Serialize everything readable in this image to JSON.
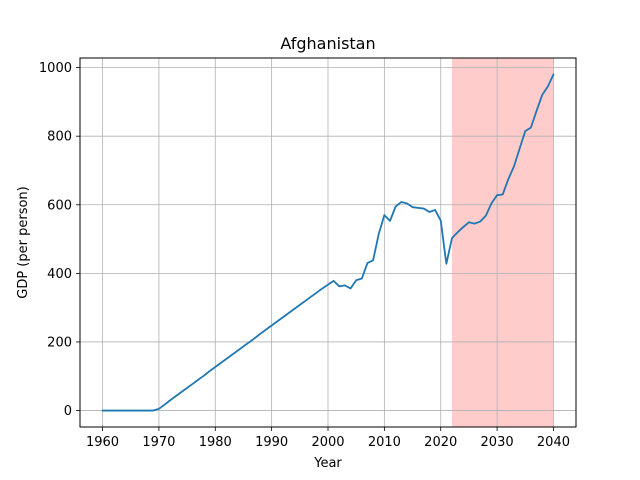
{
  "chart_data": {
    "type": "line",
    "title": "Afghanistan",
    "xlabel": "Year",
    "ylabel": "GDP (per person)",
    "xlim": [
      1956,
      2044
    ],
    "ylim": [
      -48,
      1028
    ],
    "xticks": [
      1960,
      1970,
      1980,
      1990,
      2000,
      2010,
      2020,
      2030,
      2040
    ],
    "yticks": [
      0,
      200,
      400,
      600,
      800,
      1000
    ],
    "grid": true,
    "shaded_region": {
      "x_start": 2022,
      "x_end": 2040,
      "color": "#ffcccc"
    },
    "series": [
      {
        "color": "#1f77b4",
        "points": [
          [
            1960,
            0
          ],
          [
            1961,
            0
          ],
          [
            1962,
            0
          ],
          [
            1963,
            0
          ],
          [
            1964,
            0
          ],
          [
            1965,
            0
          ],
          [
            1966,
            0
          ],
          [
            1967,
            0
          ],
          [
            1968,
            0
          ],
          [
            1969,
            0
          ],
          [
            1970,
            5
          ],
          [
            1971,
            17
          ],
          [
            1972,
            30
          ],
          [
            1973,
            42
          ],
          [
            1974,
            54
          ],
          [
            1975,
            66
          ],
          [
            1976,
            78
          ],
          [
            1977,
            90
          ],
          [
            1978,
            102
          ],
          [
            1979,
            115
          ],
          [
            1980,
            127
          ],
          [
            1981,
            139
          ],
          [
            1982,
            151
          ],
          [
            1983,
            163
          ],
          [
            1984,
            175
          ],
          [
            1985,
            187
          ],
          [
            1986,
            199
          ],
          [
            1987,
            211
          ],
          [
            1988,
            224
          ],
          [
            1989,
            236
          ],
          [
            1990,
            248
          ],
          [
            1991,
            260
          ],
          [
            1992,
            272
          ],
          [
            1993,
            284
          ],
          [
            1994,
            296
          ],
          [
            1995,
            308
          ],
          [
            1996,
            320
          ],
          [
            1997,
            332
          ],
          [
            1998,
            344
          ],
          [
            1999,
            356
          ],
          [
            2000,
            367
          ],
          [
            2001,
            378
          ],
          [
            2002,
            362
          ],
          [
            2003,
            365
          ],
          [
            2004,
            356
          ],
          [
            2005,
            380
          ],
          [
            2006,
            385
          ],
          [
            2007,
            430
          ],
          [
            2008,
            438
          ],
          [
            2009,
            515
          ],
          [
            2010,
            570
          ],
          [
            2011,
            553
          ],
          [
            2012,
            595
          ],
          [
            2013,
            608
          ],
          [
            2014,
            604
          ],
          [
            2015,
            593
          ],
          [
            2016,
            591
          ],
          [
            2017,
            589
          ],
          [
            2018,
            579
          ],
          [
            2019,
            585
          ],
          [
            2020,
            554
          ],
          [
            2021,
            428
          ],
          [
            2022,
            503
          ],
          [
            2023,
            520
          ],
          [
            2024,
            535
          ],
          [
            2025,
            549
          ],
          [
            2026,
            545
          ],
          [
            2027,
            551
          ],
          [
            2028,
            568
          ],
          [
            2029,
            604
          ],
          [
            2030,
            628
          ],
          [
            2031,
            630
          ],
          [
            2032,
            675
          ],
          [
            2033,
            712
          ],
          [
            2034,
            764
          ],
          [
            2035,
            815
          ],
          [
            2036,
            825
          ],
          [
            2037,
            874
          ],
          [
            2038,
            920
          ],
          [
            2039,
            945
          ],
          [
            2040,
            980
          ]
        ]
      }
    ]
  }
}
